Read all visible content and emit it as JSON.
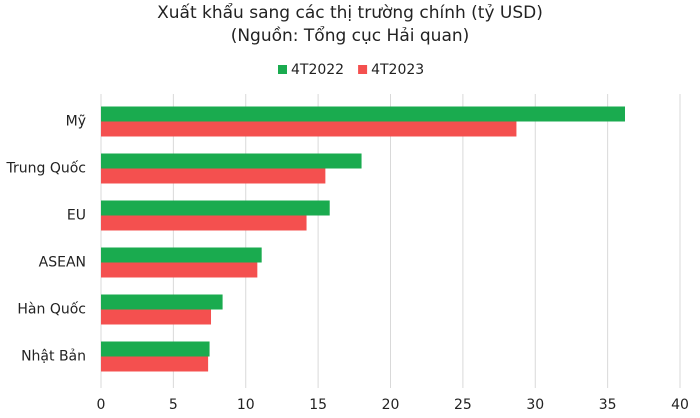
{
  "chart_data": {
    "type": "hbar",
    "title": "Xuất khẩu sang các thị trường chính (tỷ USD)",
    "subtitle": "(Nguồn: Tổng cục Hải quan)",
    "categories": [
      "Mỹ",
      "Trung Quốc",
      "EU",
      "ASEAN",
      "Hàn Quốc",
      "Nhật Bản"
    ],
    "series": [
      {
        "name": "4T2022",
        "color": "#1aab4f",
        "values": [
          36.2,
          18.0,
          15.8,
          11.1,
          8.4,
          7.5
        ]
      },
      {
        "name": "4T2023",
        "color": "#f4504f",
        "values": [
          28.7,
          15.5,
          14.2,
          10.8,
          7.6,
          7.4
        ]
      }
    ],
    "xlim": [
      0,
      40
    ],
    "xticks": [
      0,
      5,
      10,
      15,
      20,
      25,
      30,
      35,
      40
    ],
    "grid": true,
    "legend": "top"
  }
}
